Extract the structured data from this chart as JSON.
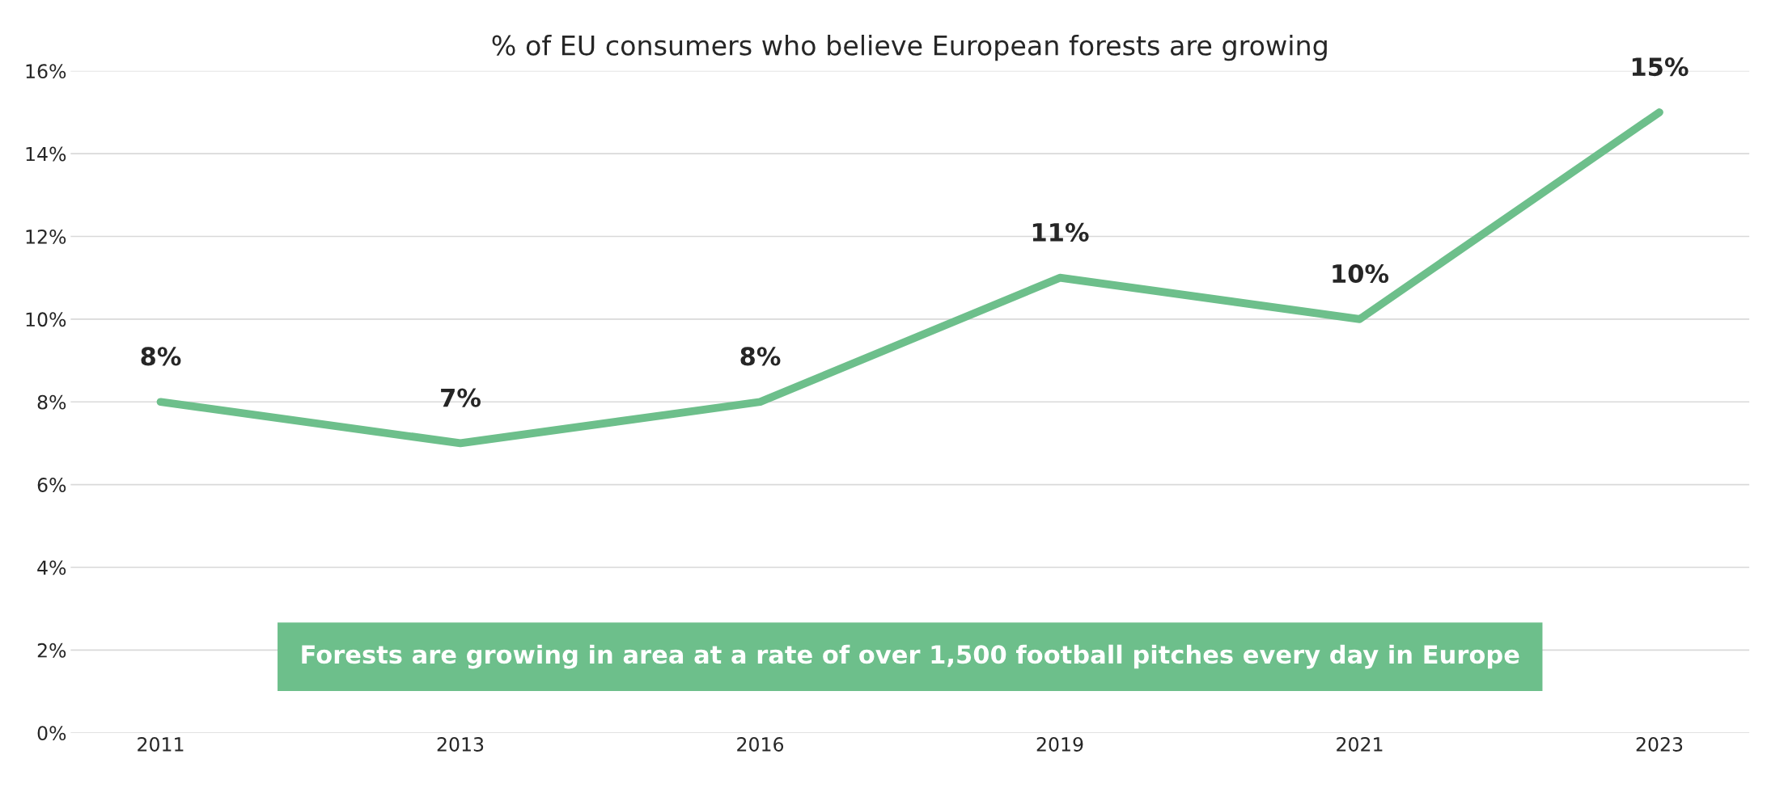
{
  "chart_data": {
    "type": "line",
    "title": "% of EU consumers who believe European forests are growing",
    "categories": [
      "2011",
      "2013",
      "2016",
      "2019",
      "2021",
      "2023"
    ],
    "series": [
      {
        "color": "#6dbf8b",
        "values": [
          8,
          7,
          8,
          11,
          10,
          15
        ],
        "value_labels": [
          "8%",
          "7%",
          "8%",
          "11%",
          "10%",
          "15%"
        ]
      }
    ],
    "ylim": [
      0,
      16
    ],
    "yticks": [
      {
        "value": 0,
        "label": "0%"
      },
      {
        "value": 2,
        "label": "2%"
      },
      {
        "value": 4,
        "label": "4%"
      },
      {
        "value": 6,
        "label": "6%"
      },
      {
        "value": 8,
        "label": "8%"
      },
      {
        "value": 10,
        "label": "10%"
      },
      {
        "value": 12,
        "label": "12%"
      },
      {
        "value": 14,
        "label": "14%"
      },
      {
        "value": 16,
        "label": "16%"
      }
    ],
    "grid": "y",
    "marker": "none",
    "line_style": "solid",
    "legend": false,
    "annotations": [
      "Forests are growing in area at a rate of over 1,500 football pitches every day in Europe"
    ]
  }
}
